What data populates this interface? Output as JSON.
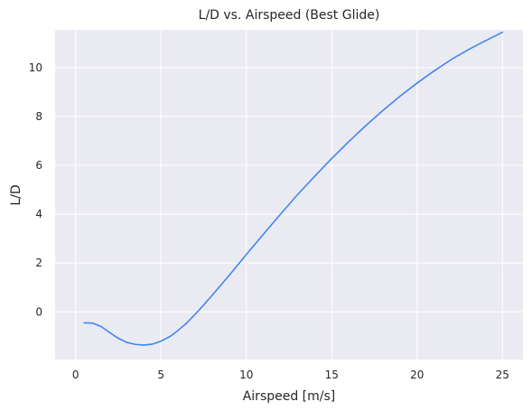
{
  "chart_data": {
    "type": "line",
    "title": "L/D vs. Airspeed (Best Glide)",
    "xlabel": "Airspeed [m/s]",
    "ylabel": "L/D",
    "xlim": [
      -1.2,
      26.2
    ],
    "ylim": [
      -1.95,
      11.55
    ],
    "xticks": [
      0,
      5,
      10,
      15,
      20,
      25
    ],
    "yticks": [
      0,
      2,
      4,
      6,
      8,
      10
    ],
    "grid": true,
    "background": "#eaeaf2",
    "grid_color": "#ffffff",
    "series": [
      {
        "color": "#4285f4",
        "x": [
          0.5,
          1.0,
          1.5,
          2.0,
          2.5,
          3.0,
          3.5,
          4.0,
          4.5,
          5.0,
          5.5,
          6.0,
          6.5,
          7.0,
          7.5,
          8.0,
          9.0,
          10.0,
          11.0,
          12.0,
          13.0,
          14.0,
          15.0,
          16.0,
          17.0,
          18.0,
          19.0,
          20.0,
          21.0,
          22.0,
          23.0,
          24.0,
          25.0
        ],
        "y": [
          -0.45,
          -0.46,
          -0.6,
          -0.85,
          -1.08,
          -1.25,
          -1.33,
          -1.36,
          -1.32,
          -1.2,
          -1.02,
          -0.76,
          -0.46,
          -0.1,
          0.28,
          0.68,
          1.5,
          2.35,
          3.18,
          4.0,
          4.8,
          5.55,
          6.28,
          6.97,
          7.63,
          8.25,
          8.83,
          9.37,
          9.87,
          10.33,
          10.74,
          11.1,
          11.45
        ]
      }
    ]
  }
}
